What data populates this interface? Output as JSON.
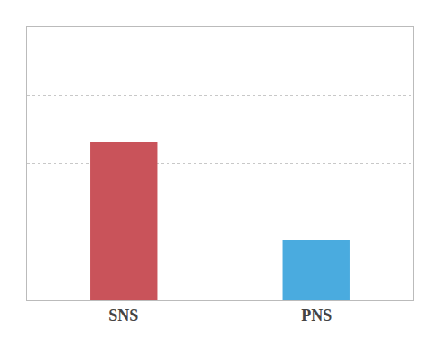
{
  "chart_data": {
    "type": "bar",
    "categories": [
      "SNS",
      "PNS"
    ],
    "values": [
      0.58,
      0.22
    ],
    "colors": [
      "#c9535a",
      "#4aabdf"
    ],
    "ylim": [
      0,
      1.0
    ],
    "yticks": [
      0.5,
      0.75
    ],
    "grid": true,
    "tick_labels": "x"
  }
}
